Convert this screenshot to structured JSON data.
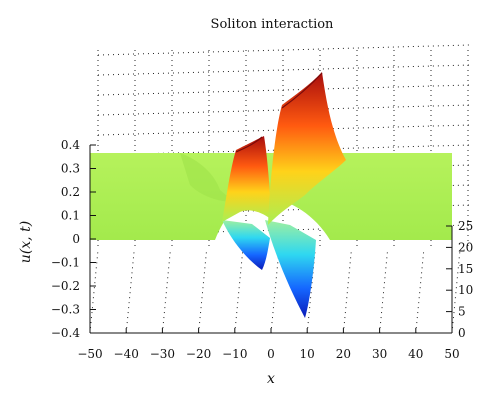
{
  "chart_data": {
    "type": "surface",
    "title": "Soliton interaction",
    "xlabel": "x",
    "ylabel": "u(x, t)",
    "xlim": [
      -50,
      50
    ],
    "x_ticks": [
      "−50",
      "−40",
      "−30",
      "−20",
      "−10",
      "0",
      "10",
      "20",
      "30",
      "40",
      "50"
    ],
    "u_lim": [
      -0.4,
      0.4
    ],
    "u_ticks": [
      "−0.4",
      "−0.3",
      "−0.2",
      "−0.1",
      "0",
      "0.1",
      "0.2",
      "0.3",
      "0.4"
    ],
    "t_lim": [
      0,
      25
    ],
    "t_ticks": [
      "0",
      "5",
      "10",
      "15",
      "20",
      "25"
    ],
    "grid": true,
    "background_plateau_u": 0.37,
    "solitons": [
      {
        "x_center": -6,
        "peak_u": 0.3,
        "trough_u": -0.1
      },
      {
        "x_center": 6,
        "peak_u": 0.43,
        "trough_u": -0.35
      }
    ],
    "colors": {
      "plateau": "#a9ef53",
      "peak": "#b01010",
      "trough": "#0a1bd8"
    }
  }
}
